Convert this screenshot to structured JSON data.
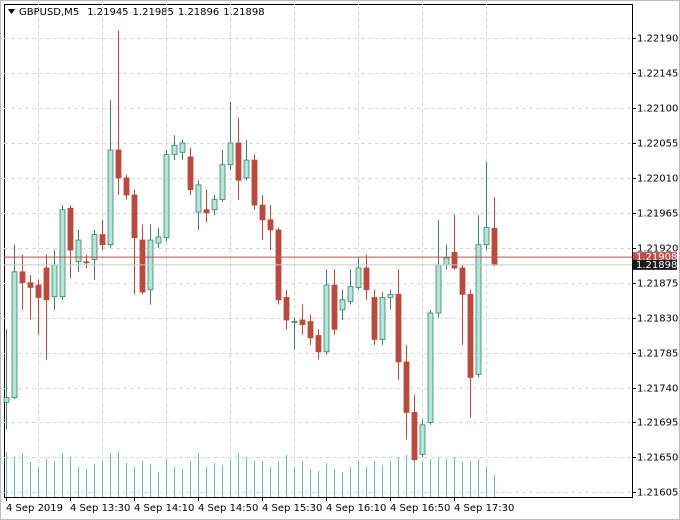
{
  "chart_data": {
    "type": "candlestick",
    "title": "GBPUSD,M5",
    "categories": [
      "4 Sep 2019",
      null,
      null,
      null,
      null,
      null,
      null,
      null,
      "4 Sep 13:30",
      null,
      null,
      null,
      null,
      null,
      null,
      null,
      "4 Sep 14:10",
      null,
      null,
      null,
      null,
      null,
      null,
      null,
      "4 Sep 14:50",
      null,
      null,
      null,
      null,
      null,
      null,
      null,
      "4 Sep 15:30",
      null,
      null,
      null,
      null,
      null,
      null,
      null,
      "4 Sep 16:10",
      null,
      null,
      null,
      null,
      null,
      null,
      null,
      "4 Sep 16:50",
      null,
      null,
      null,
      null,
      null,
      null,
      null,
      "4 Sep 17:30",
      null,
      null,
      null,
      null,
      null
    ],
    "open": [
      1.21721,
      1.21727,
      1.21889,
      1.21875,
      1.21872,
      1.21894,
      1.21857,
      1.21857,
      1.21971,
      1.21902,
      1.21902,
      1.21905,
      1.21937,
      1.21924,
      1.22046,
      1.2201,
      1.21988,
      1.2193,
      1.21866,
      1.21926,
      1.21933,
      1.2204,
      1.22043,
      1.22037,
      1.21966,
      1.21969,
      1.21969,
      1.21982,
      1.22027,
      1.22055,
      1.2201,
      1.22033,
      1.21975,
      1.21956,
      1.21943,
      1.21856,
      1.21824,
      1.21827,
      1.21825,
      1.21807,
      1.21786,
      1.21872,
      1.2184,
      1.21851,
      1.21869,
      1.21894,
      1.21856,
      1.21802,
      1.21856,
      1.2186,
      1.21773,
      1.21708,
      1.21654,
      1.21695,
      1.21836,
      1.21898,
      1.21914,
      1.21894,
      1.2186,
      1.21757,
      1.21924,
      1.21945
    ],
    "high": [
      1.21815,
      1.21924,
      1.21911,
      1.21885,
      1.21879,
      1.21911,
      1.21917,
      1.21975,
      1.21975,
      1.21943,
      1.21911,
      1.21943,
      1.21956,
      1.2211,
      1.222,
      1.22014,
      1.21995,
      1.2195,
      1.2195,
      1.21946,
      1.22046,
      1.22065,
      1.22059,
      1.22049,
      1.22007,
      1.21995,
      1.21988,
      1.22046,
      1.22108,
      1.22087,
      1.22059,
      1.2204,
      1.21988,
      1.21975,
      1.21946,
      1.21866,
      1.2183,
      1.21847,
      1.21834,
      1.21815,
      1.21892,
      1.21892,
      1.21866,
      1.21892,
      1.21907,
      1.21911,
      1.21866,
      1.21863,
      1.21866,
      1.21892,
      1.21795,
      1.21731,
      1.21699,
      1.2184,
      1.21956,
      1.21924,
      1.21962,
      1.21898,
      1.21866,
      1.21962,
      1.22031,
      1.21985
    ],
    "low": [
      1.21686,
      1.21725,
      1.2184,
      1.21827,
      1.21808,
      1.21776,
      1.2184,
      1.21853,
      1.21881,
      1.21889,
      1.21894,
      1.21879,
      1.21917,
      1.2192,
      1.21988,
      1.21982,
      1.2186,
      1.2186,
      1.21847,
      1.2192,
      1.21928,
      1.22033,
      1.22033,
      1.21988,
      1.21943,
      1.21953,
      1.21962,
      1.21979,
      1.2202,
      1.21982,
      1.22007,
      1.21969,
      1.2193,
      1.21917,
      1.21847,
      1.21815,
      1.21789,
      1.21808,
      1.21795,
      1.21776,
      1.21782,
      1.21808,
      1.21827,
      1.21847,
      1.21866,
      1.21853,
      1.21795,
      1.21795,
      1.2184,
      1.2175,
      1.21673,
      1.21645,
      1.2165,
      1.21692,
      1.2183,
      1.21892,
      1.21892,
      1.21795,
      1.21701,
      1.21753,
      1.21917,
      1.21896
    ],
    "close": [
      1.21727,
      1.21889,
      1.21875,
      1.21869,
      1.21856,
      1.21853,
      1.21898,
      1.21969,
      1.21917,
      1.2193,
      1.21901,
      1.21937,
      1.21924,
      1.22046,
      1.2201,
      1.21988,
      1.21933,
      1.21863,
      1.2193,
      1.21934,
      1.2204,
      1.22052,
      1.22055,
      1.21995,
      1.22001,
      1.21965,
      1.21982,
      1.22027,
      1.22055,
      1.22007,
      1.22033,
      1.21975,
      1.21956,
      1.21943,
      1.21853,
      1.21827,
      1.21825,
      1.21821,
      1.21804,
      1.21786,
      1.21872,
      1.21815,
      1.21853,
      1.2187,
      1.21894,
      1.21866,
      1.21802,
      1.21856,
      1.2186,
      1.21773,
      1.21708,
      1.21647,
      1.21692,
      1.21836,
      1.21898,
      1.21907,
      1.21894,
      1.2186,
      1.21753,
      1.21924,
      1.21946,
      1.21898
    ],
    "volume": [
      45,
      40,
      44,
      35,
      30,
      38,
      35,
      44,
      40,
      30,
      28,
      33,
      36,
      44,
      45,
      34,
      30,
      36,
      33,
      25,
      38,
      30,
      28,
      36,
      44,
      30,
      34,
      32,
      38,
      44,
      40,
      36,
      36,
      30,
      35,
      42,
      30,
      36,
      28,
      26,
      34,
      28,
      25,
      30,
      36,
      30,
      36,
      32,
      36,
      40,
      42,
      38,
      36,
      38,
      40,
      38,
      40,
      35,
      36,
      38,
      30,
      22
    ],
    "up_color": "#b2e6d6",
    "up_line": "#3d7f70",
    "down_color": "#b94a3c",
    "volume_color": "#6cc0b0",
    "ylim": [
      1.21599,
      1.22234
    ],
    "yticks": [
      1.21605,
      {
        "value": 1.2165,
        "label": "1.21650"
      },
      1.21695,
      {
        "value": 1.2174,
        "label": "1.21740"
      },
      1.21785,
      {
        "value": 1.2183,
        "label": "1.21830"
      },
      1.21875,
      {
        "value": 1.2192,
        "label": "1.21920"
      },
      1.21965,
      {
        "value": 1.2201,
        "label": "1.22010"
      },
      1.22055,
      {
        "value": 1.221,
        "label": "1.22100"
      },
      1.22145,
      {
        "value": 1.2219,
        "label": "1.22190"
      }
    ],
    "grid": true,
    "ask_line": {
      "value": 1.21908,
      "color": "#c0504d"
    }
  }
}
